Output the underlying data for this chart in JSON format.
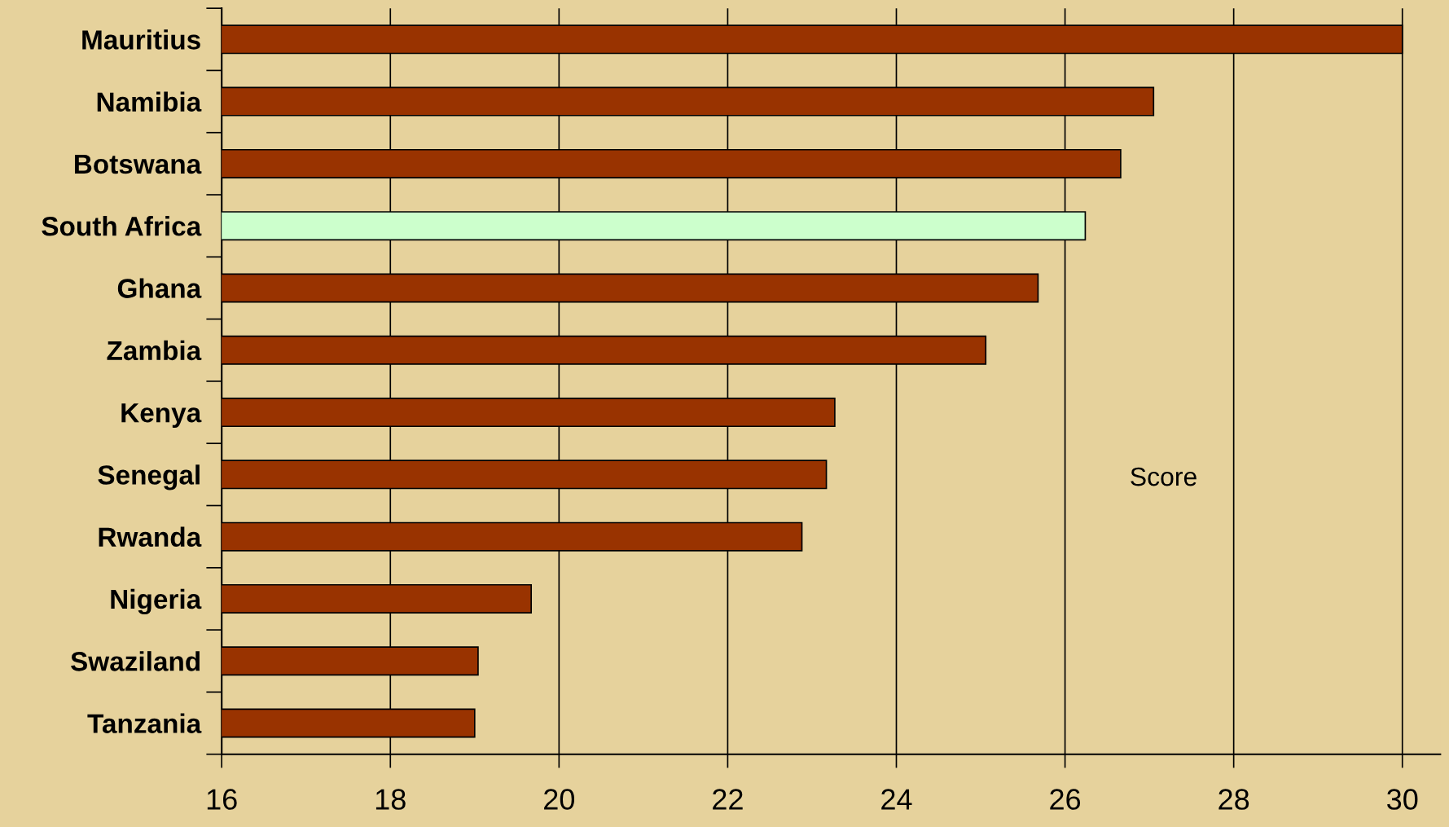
{
  "chart_data": {
    "type": "bar",
    "orientation": "horizontal",
    "categories": [
      "Mauritius",
      "Namibia",
      "Botswana",
      "South Africa",
      "Ghana",
      "Zambia",
      "Kenya",
      "Senegal",
      "Rwanda",
      "Nigeria",
      "Swaziland",
      "Tanzania"
    ],
    "values": [
      30.0,
      27.05,
      26.66,
      26.24,
      25.68,
      25.06,
      23.27,
      23.17,
      22.88,
      19.67,
      19.04,
      19.0
    ],
    "colors": [
      "#993300",
      "#993300",
      "#993300",
      "#ccffcc",
      "#993300",
      "#993300",
      "#993300",
      "#993300",
      "#993300",
      "#993300",
      "#993300",
      "#993300"
    ],
    "xlim": [
      16,
      30.45
    ],
    "xticks": [
      16,
      18,
      20,
      22,
      24,
      26,
      28,
      30
    ],
    "grid": "x",
    "legend": false,
    "annotations": [
      "Score"
    ]
  }
}
